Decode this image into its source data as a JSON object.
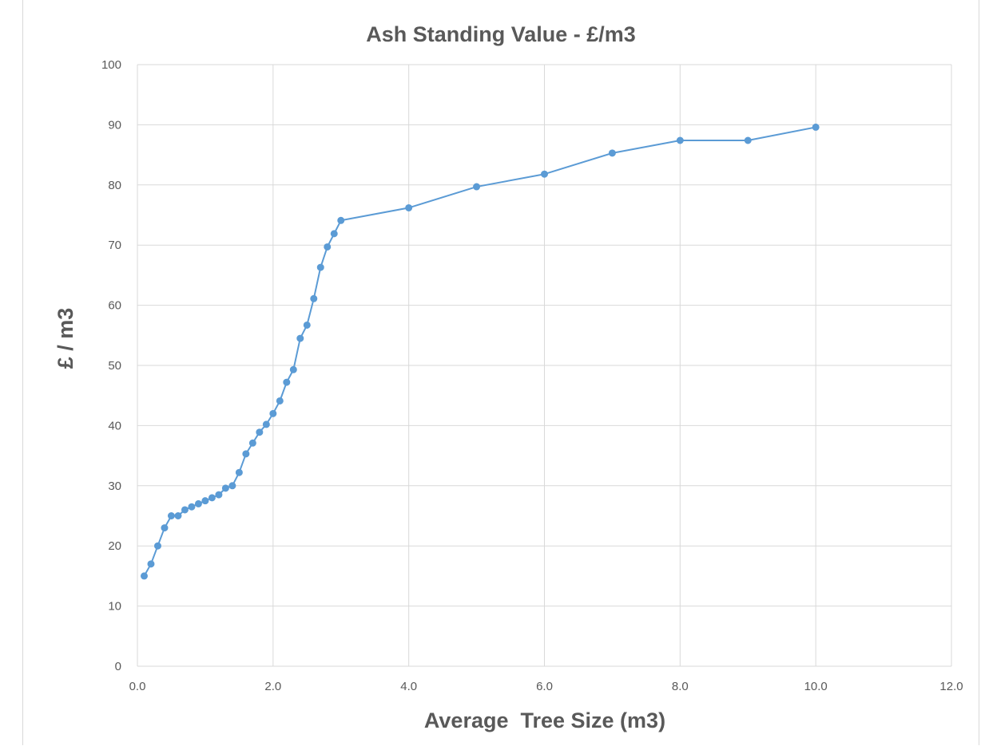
{
  "chart_data": {
    "type": "scatter",
    "title": "Ash Standing Value - £/m3",
    "xlabel": "Average  Tree Size (m3)",
    "ylabel": "£ / m3",
    "xlim": [
      0,
      12
    ],
    "ylim": [
      0,
      100
    ],
    "x_ticks": [
      "0.0",
      "2.0",
      "4.0",
      "6.0",
      "8.0",
      "10.0",
      "12.0"
    ],
    "y_ticks": [
      "0",
      "10",
      "20",
      "30",
      "40",
      "50",
      "60",
      "70",
      "80",
      "90",
      "100"
    ],
    "grid": true,
    "legend": "none",
    "line_style": "straight lines with markers",
    "color": "#5b9bd5",
    "series": [
      {
        "x": [
          0.1,
          0.2,
          0.3,
          0.4,
          0.5,
          0.6,
          0.7,
          0.8,
          0.9,
          1.0,
          1.1,
          1.2,
          1.3,
          1.4,
          1.5,
          1.6,
          1.7,
          1.8,
          1.9,
          2.0,
          2.1,
          2.2,
          2.3,
          2.4,
          2.5,
          2.6,
          2.7,
          2.8,
          2.9,
          3.0,
          4.0,
          5.0,
          6.0,
          7.0,
          8.0,
          9.0,
          10.0
        ],
        "y": [
          15,
          17,
          20,
          23,
          25,
          25,
          26,
          26.5,
          27,
          27.5,
          28,
          28.5,
          29.6,
          30,
          32.2,
          35.3,
          37.1,
          38.9,
          40.2,
          42,
          44.1,
          47.2,
          49.3,
          54.5,
          56.7,
          61.1,
          66.3,
          69.7,
          71.9,
          74.1,
          76.2,
          79.7,
          81.8,
          85.3,
          87.4,
          87.4,
          89.6
        ]
      }
    ]
  }
}
